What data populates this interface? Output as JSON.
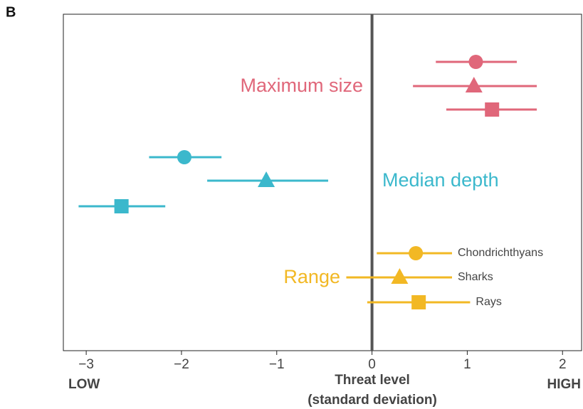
{
  "chart_data": {
    "type": "dot",
    "panel": "B",
    "xlim": [
      -3.24,
      2.2
    ],
    "xticks": [
      {
        "value": -3,
        "label": "−3"
      },
      {
        "value": -2,
        "label": "−2"
      },
      {
        "value": -1,
        "label": "−1"
      },
      0,
      1,
      2
    ],
    "reference_line": 0,
    "x_low_label": "LOW",
    "x_high_label": "HIGH",
    "xlabel": [
      "Threat level",
      "(standard deviation)"
    ],
    "taxa": [
      "Chondrichthyans",
      "Sharks",
      "Rays"
    ],
    "series": [
      {
        "name": "Maximum size",
        "color": "#e0677a",
        "values": [
          1.09,
          1.07,
          1.26
        ],
        "lower": [
          0.67,
          0.43,
          0.78
        ],
        "upper": [
          1.52,
          1.73,
          1.73
        ]
      },
      {
        "name": "Median depth",
        "color": "#3bb8cc",
        "values": [
          -1.97,
          -1.11,
          -2.63
        ],
        "lower": [
          -2.34,
          -1.73,
          -3.08
        ],
        "upper": [
          -1.58,
          -0.46,
          -2.17
        ]
      },
      {
        "name": "Range",
        "color": "#f2b824",
        "values": [
          0.46,
          0.29,
          0.49
        ],
        "lower": [
          0.05,
          -0.27,
          -0.05
        ],
        "upper": [
          0.84,
          0.84,
          1.03
        ]
      }
    ]
  }
}
